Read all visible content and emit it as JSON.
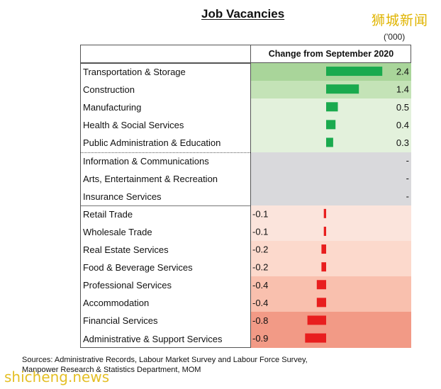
{
  "title": "Job Vacancies",
  "units": "('000)",
  "watermark_top": "狮城新闻",
  "watermark_bottom": "shicheng.news",
  "column_header": "Change from September 2020",
  "sources_line1": "Sources: Administrative Records, Labour Market Survey and Labour Force Survey,",
  "sources_line2": "Manpower Research & Statistics Department, MOM",
  "colors": {
    "positive_bar": "#1aaa4e",
    "negative_bar": "#e81e1e"
  },
  "chart_data": {
    "type": "bar",
    "orientation": "horizontal",
    "title": "Job Vacancies",
    "value_header": "Change from September 2020",
    "units": "('000)",
    "categories": [
      "Transportation & Storage",
      "Construction",
      "Manufacturing",
      "Health & Social Services",
      "Public Administration & Education",
      "Information & Communications",
      "Arts, Entertainment & Recreation",
      "Insurance Services",
      "Retail Trade",
      "Wholesale Trade",
      "Real Estate Services",
      "Food & Beverage Services",
      "Professional Services",
      "Accommodation",
      "Financial Services",
      "Administrative & Support Services"
    ],
    "values": [
      2.4,
      1.4,
      0.5,
      0.4,
      0.3,
      null,
      null,
      null,
      -0.1,
      -0.1,
      -0.2,
      -0.2,
      -0.4,
      -0.4,
      -0.8,
      -0.9
    ],
    "value_labels": [
      "2.4",
      "1.4",
      "0.5",
      "0.4",
      "0.3",
      "-",
      "-",
      "-",
      "-0.1",
      "-0.1",
      "-0.2",
      "-0.2",
      "-0.4",
      "-0.4",
      "-0.8",
      "-0.9"
    ],
    "grid": false,
    "legend": "none"
  }
}
